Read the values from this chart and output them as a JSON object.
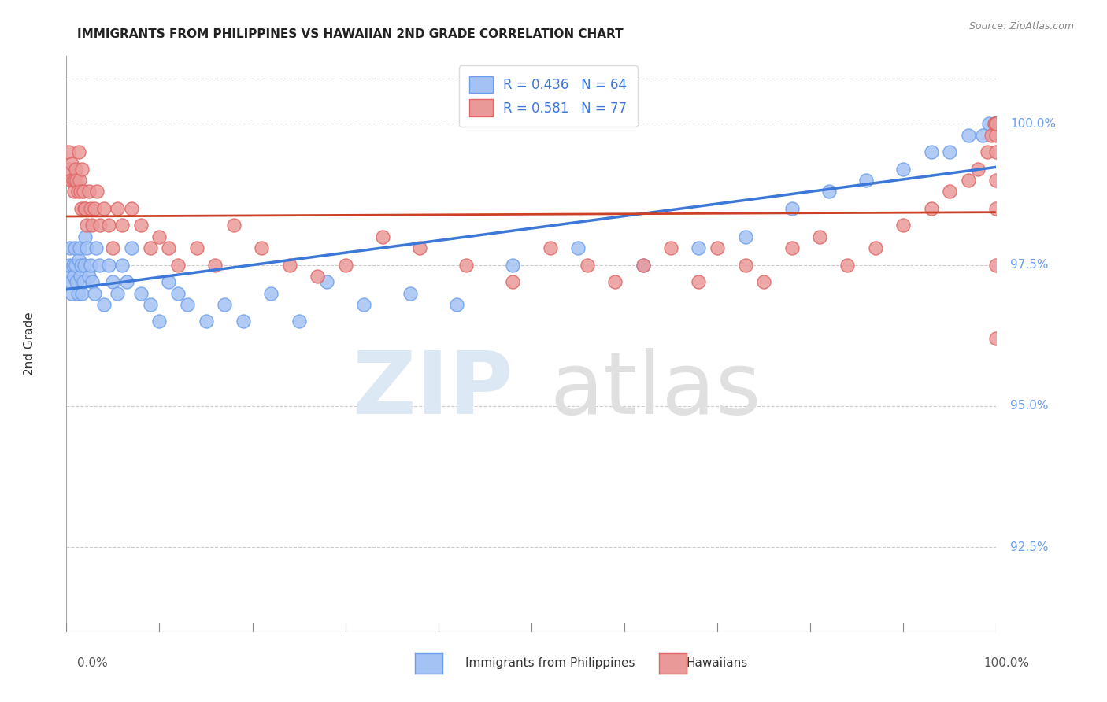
{
  "title": "IMMIGRANTS FROM PHILIPPINES VS HAWAIIAN 2ND GRADE CORRELATION CHART",
  "source": "Source: ZipAtlas.com",
  "ylabel": "2nd Grade",
  "xrange": [
    0.0,
    100.0
  ],
  "yrange": [
    91.0,
    101.2
  ],
  "ytick_vals": [
    92.5,
    95.0,
    97.5,
    100.0
  ],
  "color_blue_fill": "#a4c2f4",
  "color_blue_edge": "#6d9eeb",
  "color_blue_line": "#3c78d8",
  "color_pink_fill": "#ea9999",
  "color_pink_edge": "#e06666",
  "color_pink_line": "#cc4125",
  "color_ytick": "#6d9eeb",
  "legend_r1": "R = 0.436",
  "legend_n1": "N = 64",
  "legend_r2": "R = 0.581",
  "legend_n2": "N = 77",
  "legend_label1": "Immigrants from Philippines",
  "legend_label2": "Hawaiians",
  "blue_points_x": [
    0.2,
    0.3,
    0.4,
    0.5,
    0.6,
    0.7,
    0.8,
    0.9,
    1.0,
    1.1,
    1.2,
    1.3,
    1.4,
    1.5,
    1.6,
    1.7,
    1.8,
    1.9,
    2.0,
    2.2,
    2.4,
    2.6,
    2.8,
    3.0,
    3.2,
    3.5,
    4.0,
    4.5,
    5.0,
    5.5,
    6.0,
    6.5,
    7.0,
    8.0,
    9.0,
    10.0,
    11.0,
    12.0,
    13.0,
    15.0,
    17.0,
    19.0,
    22.0,
    25.0,
    28.0,
    32.0,
    37.0,
    42.0,
    48.0,
    55.0,
    62.0,
    68.0,
    73.0,
    78.0,
    82.0,
    86.0,
    90.0,
    93.0,
    95.0,
    97.0,
    98.5,
    99.2,
    99.8,
    100.0
  ],
  "blue_points_y": [
    97.3,
    97.5,
    97.8,
    97.2,
    97.0,
    97.5,
    97.3,
    97.8,
    97.5,
    97.2,
    97.0,
    97.6,
    97.8,
    97.3,
    97.5,
    97.0,
    97.2,
    97.5,
    98.0,
    97.8,
    97.3,
    97.5,
    97.2,
    97.0,
    97.8,
    97.5,
    96.8,
    97.5,
    97.2,
    97.0,
    97.5,
    97.2,
    97.8,
    97.0,
    96.8,
    96.5,
    97.2,
    97.0,
    96.8,
    96.5,
    96.8,
    96.5,
    97.0,
    96.5,
    97.2,
    96.8,
    97.0,
    96.8,
    97.5,
    97.8,
    97.5,
    97.8,
    98.0,
    98.5,
    98.8,
    99.0,
    99.2,
    99.5,
    99.5,
    99.8,
    99.8,
    100.0,
    100.0,
    100.0
  ],
  "pink_points_x": [
    0.2,
    0.3,
    0.5,
    0.6,
    0.7,
    0.8,
    0.9,
    1.0,
    1.1,
    1.2,
    1.3,
    1.4,
    1.5,
    1.6,
    1.7,
    1.8,
    1.9,
    2.0,
    2.2,
    2.4,
    2.6,
    2.8,
    3.0,
    3.3,
    3.6,
    4.0,
    4.5,
    5.0,
    5.5,
    6.0,
    7.0,
    8.0,
    9.0,
    10.0,
    11.0,
    12.0,
    14.0,
    16.0,
    18.0,
    21.0,
    24.0,
    27.0,
    30.0,
    34.0,
    38.0,
    43.0,
    48.0,
    52.0,
    56.0,
    59.0,
    62.0,
    65.0,
    68.0,
    70.0,
    73.0,
    75.0,
    78.0,
    81.0,
    84.0,
    87.0,
    90.0,
    93.0,
    95.0,
    97.0,
    98.0,
    99.0,
    99.5,
    99.8,
    100.0,
    100.0,
    100.0,
    100.0,
    100.0,
    100.0,
    100.0,
    100.0,
    100.0
  ],
  "pink_points_y": [
    99.5,
    99.2,
    99.0,
    99.3,
    99.0,
    98.8,
    99.0,
    99.2,
    99.0,
    98.8,
    99.5,
    99.0,
    98.8,
    98.5,
    99.2,
    98.8,
    98.5,
    98.5,
    98.2,
    98.8,
    98.5,
    98.2,
    98.5,
    98.8,
    98.2,
    98.5,
    98.2,
    97.8,
    98.5,
    98.2,
    98.5,
    98.2,
    97.8,
    98.0,
    97.8,
    97.5,
    97.8,
    97.5,
    98.2,
    97.8,
    97.5,
    97.3,
    97.5,
    98.0,
    97.8,
    97.5,
    97.2,
    97.8,
    97.5,
    97.2,
    97.5,
    97.8,
    97.2,
    97.8,
    97.5,
    97.2,
    97.8,
    98.0,
    97.5,
    97.8,
    98.2,
    98.5,
    98.8,
    99.0,
    99.2,
    99.5,
    99.8,
    100.0,
    99.8,
    100.0,
    100.0,
    100.0,
    96.2,
    97.5,
    98.5,
    99.0,
    99.5
  ]
}
